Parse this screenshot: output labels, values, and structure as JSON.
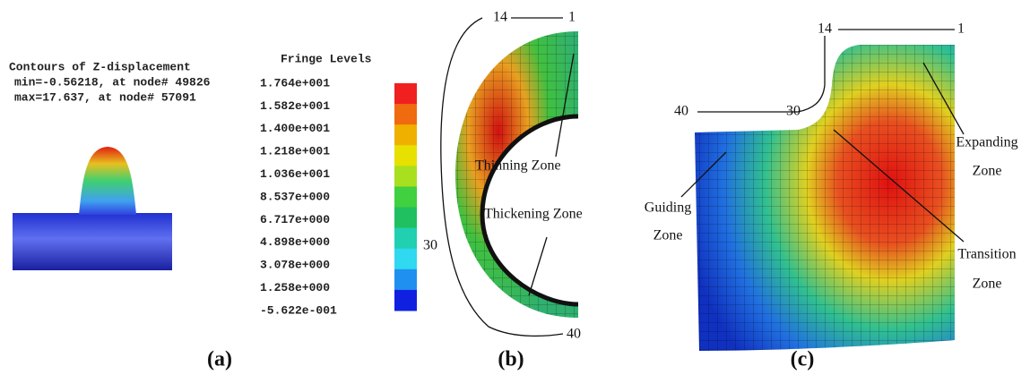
{
  "panel_a": {
    "lines": [
      "Contours of Z-displacement",
      "min=-0.56218, at node# 49826",
      "max=17.637, at node# 57091"
    ],
    "caption": "(a)"
  },
  "fringe": {
    "title": "Fringe Levels",
    "levels": [
      "1.764e+001",
      "1.582e+001",
      "1.400e+001",
      "1.218e+001",
      "1.036e+001",
      "8.537e+000",
      "6.717e+000",
      "4.898e+000",
      "3.078e+000",
      "1.258e+000",
      "-5.622e-001"
    ],
    "colors": [
      "#f02020",
      "#f06a10",
      "#f0b000",
      "#e8e000",
      "#a8e020",
      "#40d040",
      "#20c060",
      "#20d0b0",
      "#30d8f0",
      "#2090f0",
      "#1020e0"
    ]
  },
  "panel_b": {
    "top_left": "14",
    "top_right": "1",
    "side": "30",
    "bottom": "40",
    "thinning": "Thinning Zone",
    "thickening": "Thickening Zone",
    "caption": "(b)"
  },
  "panel_c": {
    "top_left": "14",
    "top_right": "1",
    "left_a": "40",
    "left_b": "30",
    "expanding": [
      "Expanding",
      "Zone"
    ],
    "guiding": [
      "Guiding",
      "Zone"
    ],
    "transition": [
      "Transition",
      "Zone"
    ],
    "caption": "(c)"
  }
}
